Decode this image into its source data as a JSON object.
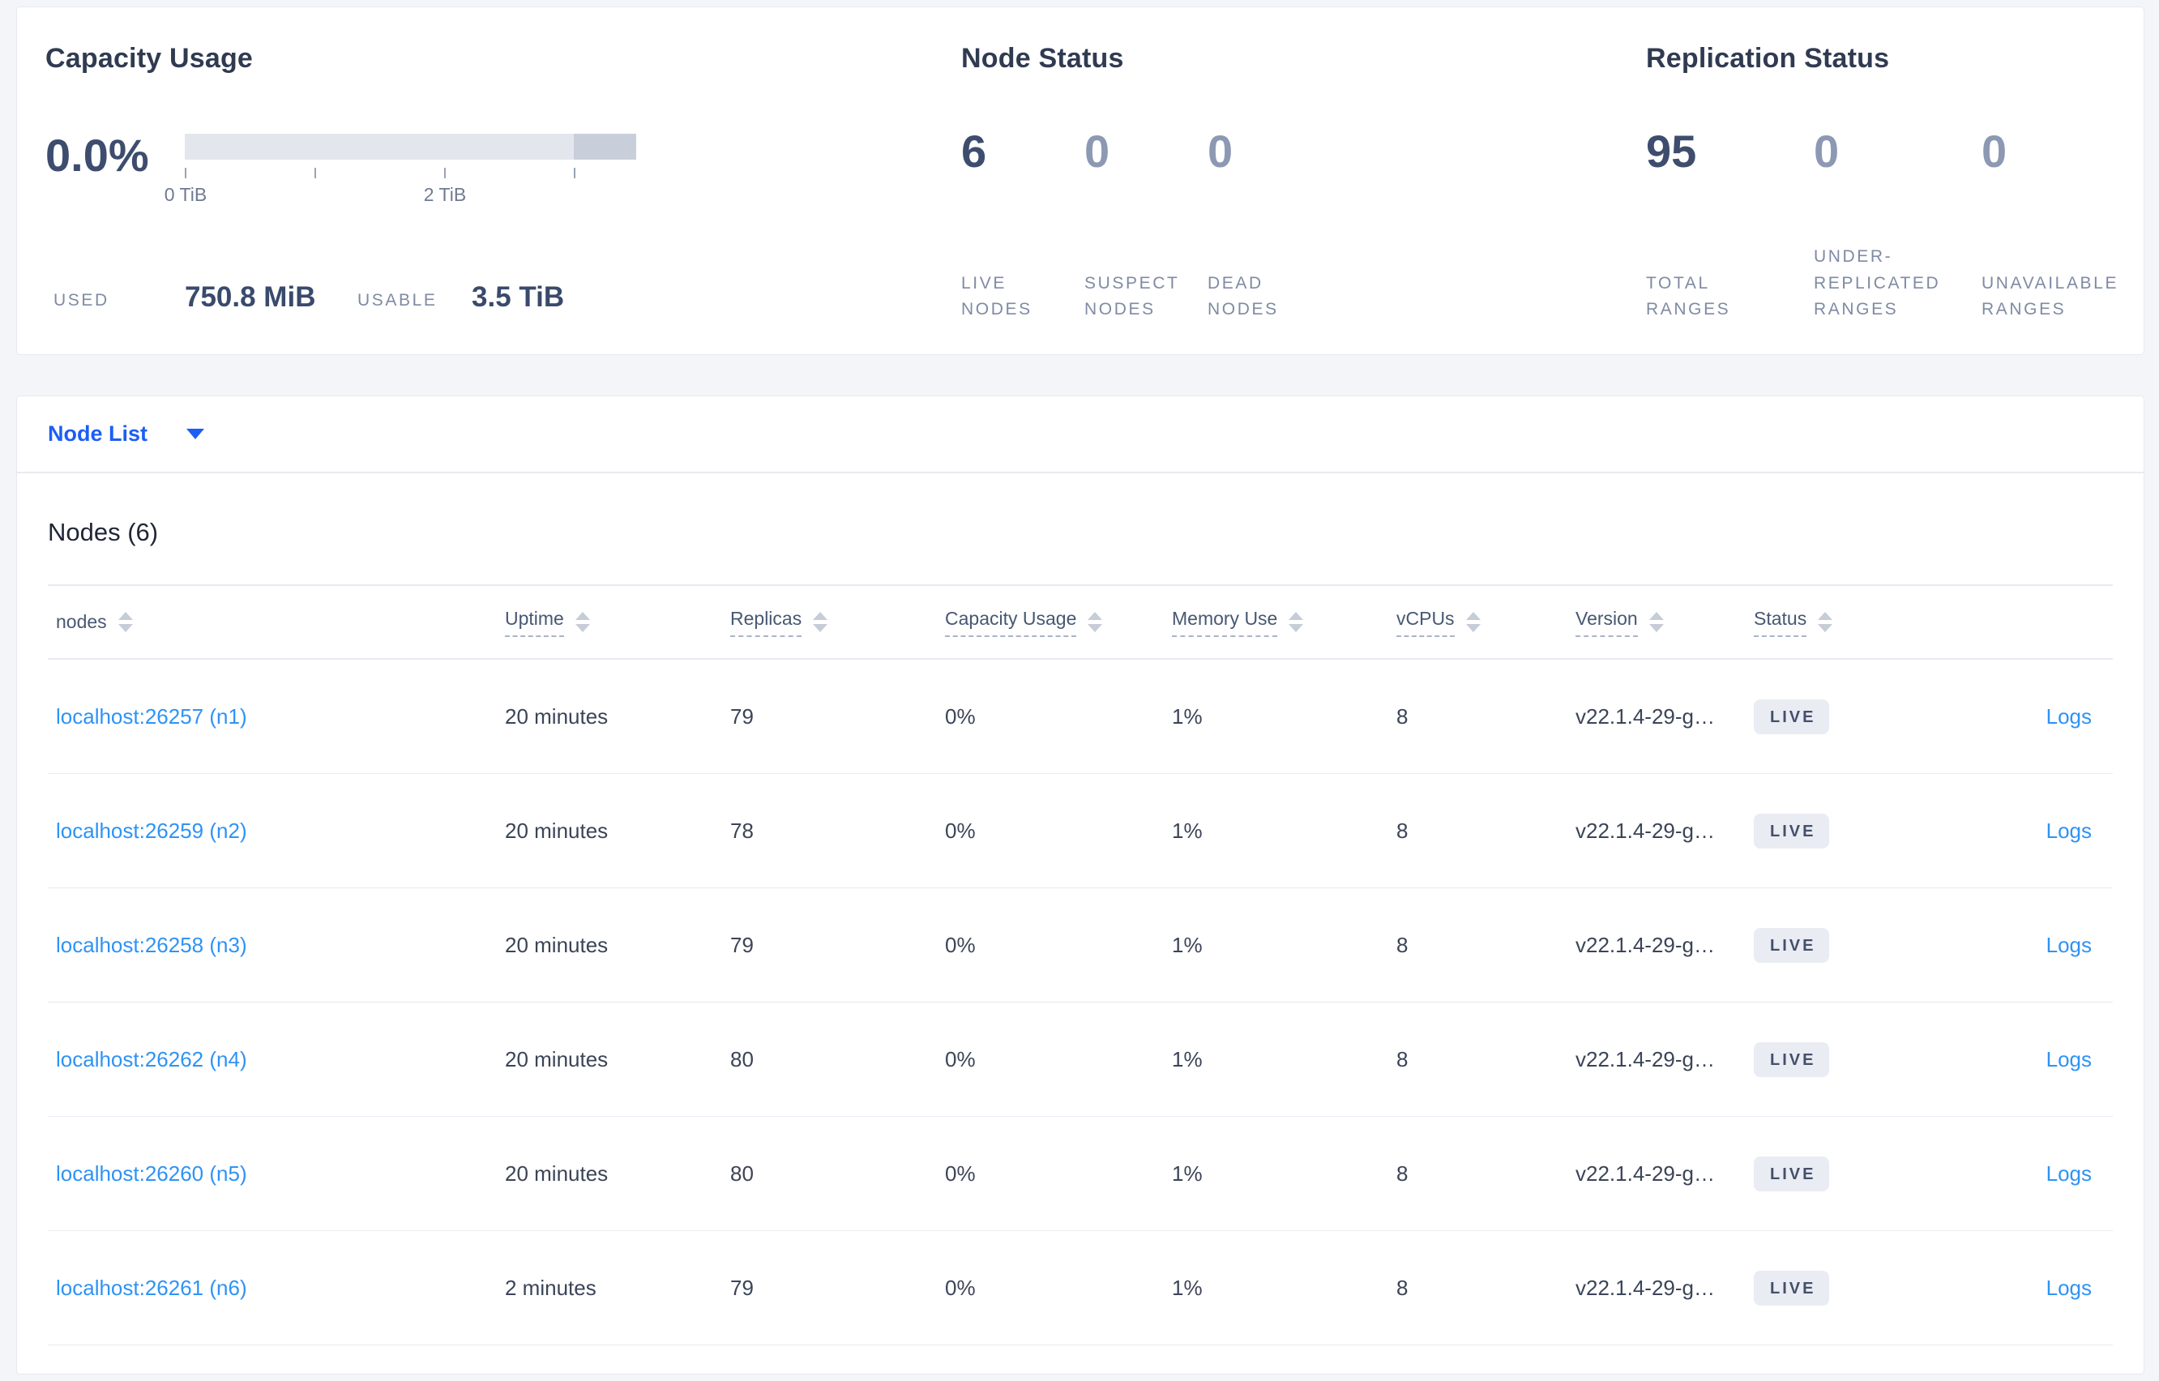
{
  "summary": {
    "capacity": {
      "title": "Capacity Usage",
      "percent": "0.0%",
      "tick_labels": [
        "0 TiB",
        "2 TiB"
      ],
      "used_label": "USED",
      "used_value": "750.8 MiB",
      "usable_label": "USABLE",
      "usable_value": "3.5 TiB"
    },
    "node_status": {
      "title": "Node Status",
      "stats": [
        {
          "value": "6",
          "label": "LIVE NODES",
          "label_lines": [
            "LIVE",
            "NODES"
          ]
        },
        {
          "value": "0",
          "label": "SUSPECT NODES",
          "label_lines": [
            "SUSPECT",
            "NODES"
          ]
        },
        {
          "value": "0",
          "label": "DEAD NODES",
          "label_lines": [
            "DEAD",
            "NODES"
          ]
        }
      ]
    },
    "replication": {
      "title": "Replication Status",
      "stats": [
        {
          "value": "95",
          "label": "TOTAL RANGES",
          "label_lines": [
            "TOTAL",
            "RANGES"
          ]
        },
        {
          "value": "0",
          "label": "UNDER-REPLICATED RANGES",
          "label_lines": [
            "UNDER-",
            "REPLICATED",
            "RANGES"
          ]
        },
        {
          "value": "0",
          "label": "UNAVAILABLE RANGES",
          "label_lines": [
            "UNAVAILABLE",
            "RANGES"
          ]
        }
      ]
    }
  },
  "node_list": {
    "dropdown_label": "Node List",
    "section_title": "Nodes (6)",
    "columns": [
      "nodes",
      "Uptime",
      "Replicas",
      "Capacity Usage",
      "Memory Use",
      "vCPUs",
      "Version",
      "Status"
    ],
    "logs_label": "Logs",
    "rows": [
      {
        "node": "localhost:26257 (n1)",
        "uptime": "20 minutes",
        "replicas": "79",
        "capacity_usage": "0%",
        "memory_use": "1%",
        "vcpus": "8",
        "version": "v22.1.4-29-g…",
        "status": "LIVE"
      },
      {
        "node": "localhost:26259 (n2)",
        "uptime": "20 minutes",
        "replicas": "78",
        "capacity_usage": "0%",
        "memory_use": "1%",
        "vcpus": "8",
        "version": "v22.1.4-29-g…",
        "status": "LIVE"
      },
      {
        "node": "localhost:26258 (n3)",
        "uptime": "20 minutes",
        "replicas": "79",
        "capacity_usage": "0%",
        "memory_use": "1%",
        "vcpus": "8",
        "version": "v22.1.4-29-g…",
        "status": "LIVE"
      },
      {
        "node": "localhost:26262 (n4)",
        "uptime": "20 minutes",
        "replicas": "80",
        "capacity_usage": "0%",
        "memory_use": "1%",
        "vcpus": "8",
        "version": "v22.1.4-29-g…",
        "status": "LIVE"
      },
      {
        "node": "localhost:26260 (n5)",
        "uptime": "20 minutes",
        "replicas": "80",
        "capacity_usage": "0%",
        "memory_use": "1%",
        "vcpus": "8",
        "version": "v22.1.4-29-g…",
        "status": "LIVE"
      },
      {
        "node": "localhost:26261 (n6)",
        "uptime": "2 minutes",
        "replicas": "79",
        "capacity_usage": "0%",
        "memory_use": "1%",
        "vcpus": "8",
        "version": "v22.1.4-29-g…",
        "status": "LIVE"
      }
    ]
  },
  "colors": {
    "accent_blue": "#1c5ef5",
    "link_blue": "#2e93f5",
    "stat_dark": "#3e4d6e",
    "stat_muted": "#8d98b2",
    "bar_light": "#e3e6ed",
    "bar_dark": "#c9cfda",
    "badge_bg": "#e9ecf3",
    "page_bg": "#f4f5f9"
  }
}
